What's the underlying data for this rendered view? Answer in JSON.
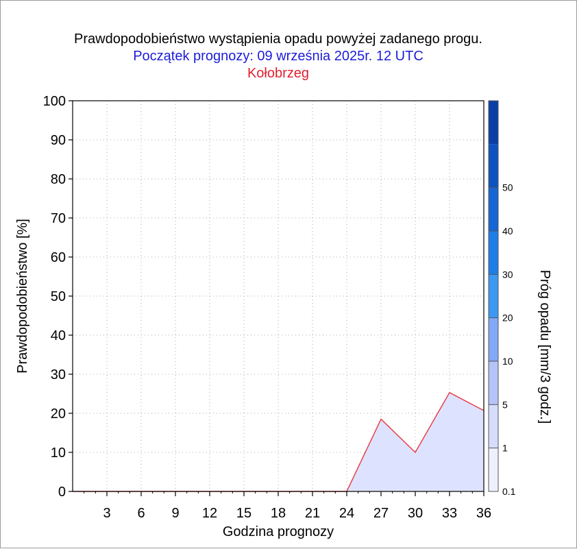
{
  "chart_data": {
    "type": "area",
    "title": "Prawdopodobieństwo wystąpienia opadu powyżej zadanego progu.",
    "subtitle": "Początek prognozy: 09 września 2025r. 12 UTC",
    "location": "Kołobrzeg",
    "xlabel": "Godzina prognozy",
    "ylabel": "Prawdopodobieństwo [%]",
    "xlim": [
      0,
      36
    ],
    "ylim": [
      0,
      100
    ],
    "xticks": [
      3,
      6,
      9,
      12,
      15,
      18,
      21,
      24,
      27,
      30,
      33,
      36
    ],
    "yticks": [
      0,
      10,
      20,
      30,
      40,
      50,
      60,
      70,
      80,
      90,
      100
    ],
    "grid": true,
    "series": [
      {
        "threshold": "0.1",
        "color": "#dde3ff",
        "line_color": "#e8404a",
        "x": [
          0,
          3,
          6,
          9,
          12,
          15,
          18,
          21,
          24,
          27,
          30,
          33,
          36
        ],
        "y": [
          0,
          0,
          0,
          0,
          0,
          0,
          0,
          0,
          0,
          18.5,
          10,
          25.3,
          20.7
        ]
      }
    ],
    "colorbar": {
      "label": "Próg opadu [mm/3 godz.]",
      "ticks": [
        "0.1",
        "1",
        "5",
        "10",
        "20",
        "30",
        "40",
        "50"
      ],
      "colors": [
        "#eef0ff",
        "#d6dcfb",
        "#b4c4f8",
        "#82a9f5",
        "#3d98f2",
        "#1f7de8",
        "#1565d4",
        "#0e52c0",
        "#0a3fa6"
      ]
    }
  }
}
